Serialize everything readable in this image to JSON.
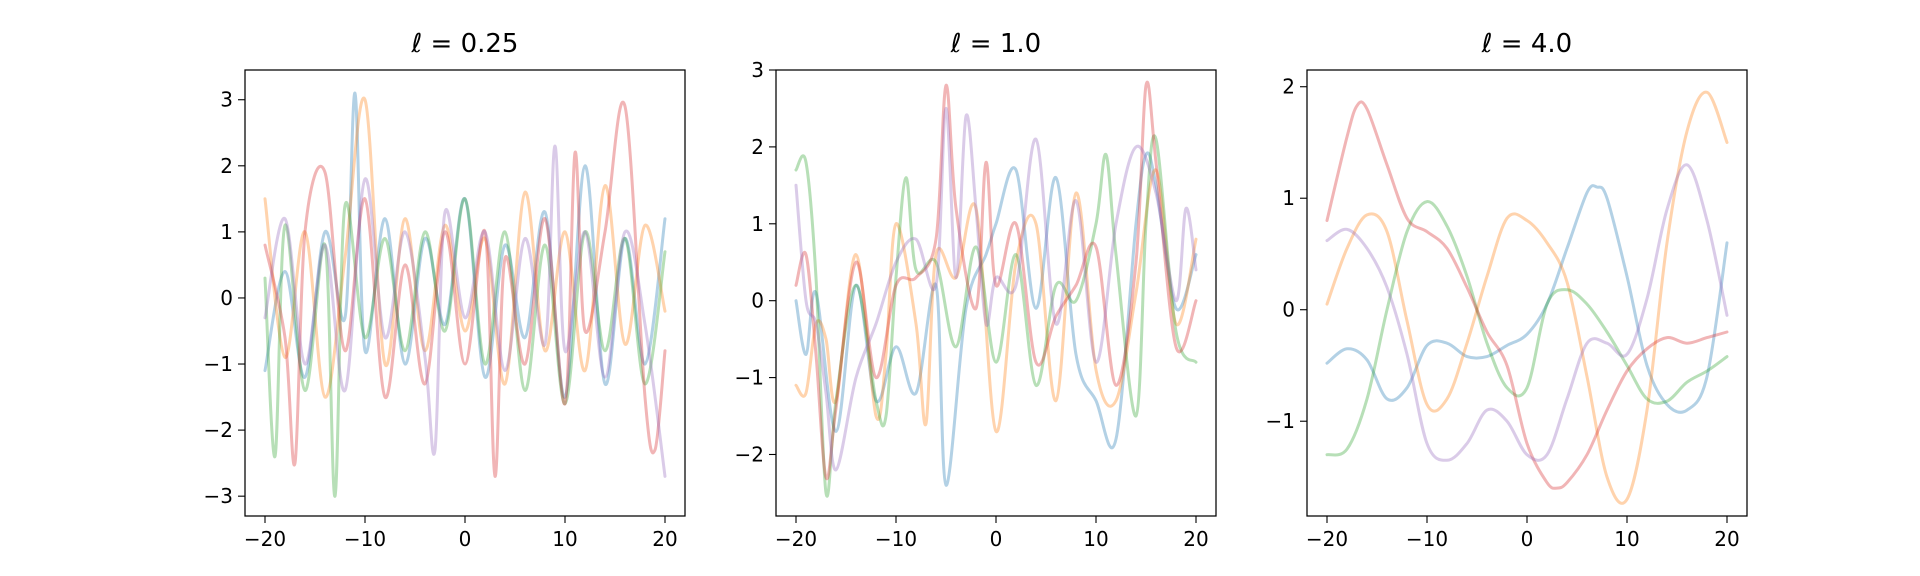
{
  "chart_data": [
    {
      "type": "line",
      "title": "ℓ = 0.25",
      "xlim": [
        -22,
        22
      ],
      "ylim": [
        -3.3,
        3.45
      ],
      "xticks": [
        -20,
        -10,
        0,
        10,
        20
      ],
      "xtick_labels": [
        "−20",
        "−10",
        "0",
        "10",
        "20"
      ],
      "yticks": [
        -3,
        -2,
        -1,
        0,
        1,
        2,
        3
      ],
      "ytick_labels": [
        "−3",
        "−2",
        "−1",
        "0",
        "1",
        "2",
        "3"
      ],
      "grid": false,
      "series": [
        {
          "color": "#1f77b4",
          "x": [
            -20,
            -18,
            -16,
            -14,
            -12,
            -11,
            -10,
            -8,
            -6,
            -4,
            -2,
            0,
            2,
            4,
            6,
            8,
            10,
            12,
            14,
            16,
            18,
            20
          ],
          "values": [
            -1.1,
            0.4,
            -1.2,
            1.0,
            -0.3,
            3.1,
            -0.8,
            1.2,
            -1.0,
            0.9,
            -0.4,
            1.5,
            -1.2,
            0.8,
            -0.6,
            1.3,
            -1.5,
            2.0,
            -1.3,
            0.9,
            -1.0,
            1.2
          ]
        },
        {
          "color": "#ff7f0e",
          "x": [
            -20,
            -18,
            -16,
            -14,
            -12,
            -10,
            -8,
            -6,
            -4,
            -2,
            0,
            2,
            4,
            6,
            8,
            10,
            12,
            14,
            16,
            18,
            20
          ],
          "values": [
            1.5,
            -0.9,
            1.0,
            -1.5,
            0.6,
            3.0,
            -1.0,
            1.2,
            -0.8,
            1.1,
            -0.5,
            0.9,
            -1.3,
            1.6,
            -0.8,
            1.0,
            -1.1,
            1.7,
            -0.7,
            1.1,
            -0.2
          ]
        },
        {
          "color": "#2ca02c",
          "x": [
            -20,
            -19,
            -18,
            -16,
            -14,
            -13,
            -12,
            -10,
            -8,
            -6,
            -4,
            -2,
            0,
            2,
            4,
            6,
            8,
            10,
            12,
            14,
            16,
            18,
            20
          ],
          "values": [
            0.3,
            -2.4,
            1.1,
            -1.4,
            0.8,
            -3.0,
            1.4,
            -0.6,
            0.9,
            -0.8,
            1.0,
            -0.5,
            1.5,
            -1.0,
            1.0,
            -1.4,
            0.8,
            -1.6,
            1.0,
            -0.8,
            0.9,
            -1.3,
            0.7
          ]
        },
        {
          "color": "#d62728",
          "x": [
            -20,
            -18,
            -17,
            -16,
            -14,
            -12,
            -10,
            -8,
            -6,
            -4,
            -2,
            0,
            2,
            3,
            4,
            6,
            8,
            10,
            11,
            12,
            14,
            16,
            18,
            19,
            20
          ],
          "values": [
            0.8,
            -0.6,
            -2.5,
            1.0,
            1.9,
            -0.8,
            1.5,
            -1.5,
            0.5,
            -1.3,
            1.0,
            -1.0,
            1.0,
            -2.7,
            0.6,
            -1.0,
            1.2,
            -1.6,
            2.2,
            -0.5,
            1.0,
            2.9,
            -1.5,
            -2.3,
            -0.8
          ]
        },
        {
          "color": "#9467bd",
          "x": [
            -20,
            -18,
            -16,
            -14,
            -12,
            -10,
            -8,
            -6,
            -4,
            -3,
            -2,
            0,
            2,
            4,
            6,
            8,
            9,
            10,
            12,
            14,
            16,
            18,
            20
          ],
          "values": [
            -0.3,
            1.2,
            -1.0,
            0.8,
            -1.4,
            1.8,
            -0.6,
            1.0,
            -0.9,
            -2.3,
            1.3,
            -0.3,
            1.0,
            -1.1,
            0.9,
            -0.7,
            2.3,
            -0.8,
            1.0,
            -1.2,
            1.0,
            -0.4,
            -2.7
          ]
        }
      ]
    },
    {
      "type": "line",
      "title": "ℓ = 1.0",
      "xlim": [
        -22,
        22
      ],
      "ylim": [
        -2.8,
        3.0
      ],
      "xticks": [
        -20,
        -10,
        0,
        10,
        20
      ],
      "xtick_labels": [
        "−20",
        "−10",
        "0",
        "10",
        "20"
      ],
      "yticks": [
        -2,
        -1,
        0,
        1,
        2,
        3
      ],
      "ytick_labels": [
        "−2",
        "−1",
        "0",
        "1",
        "2",
        "3"
      ],
      "grid": false,
      "series": [
        {
          "color": "#1f77b4",
          "x": [
            -20,
            -19,
            -18,
            -16,
            -14,
            -12,
            -10,
            -8,
            -6,
            -5,
            -3,
            -1,
            0,
            2,
            4,
            6,
            8,
            10,
            12,
            14,
            15,
            16,
            18,
            20
          ],
          "values": [
            0.0,
            -0.7,
            0.1,
            -1.7,
            0.2,
            -1.3,
            -0.6,
            -1.2,
            0.2,
            -2.4,
            -0.1,
            0.6,
            1.0,
            1.7,
            -0.1,
            1.6,
            -0.7,
            -1.3,
            -1.8,
            1.0,
            1.9,
            1.5,
            -0.1,
            0.6
          ]
        },
        {
          "color": "#ff7f0e",
          "x": [
            -20,
            -19,
            -18,
            -17,
            -16,
            -14,
            -12,
            -11,
            -10,
            -8,
            -7,
            -6,
            -4,
            -2,
            0,
            2,
            4,
            6,
            8,
            10,
            12,
            14,
            16,
            18,
            20
          ],
          "values": [
            -1.1,
            -1.2,
            -0.3,
            -0.5,
            -1.3,
            0.6,
            -1.5,
            -0.7,
            1.0,
            -0.3,
            -1.6,
            0.6,
            0.3,
            1.2,
            -1.7,
            0.5,
            1.0,
            -1.3,
            1.4,
            -0.9,
            -1.3,
            0.1,
            1.7,
            -0.3,
            0.8
          ]
        },
        {
          "color": "#2ca02c",
          "x": [
            -20,
            -19,
            -18,
            -17,
            -16,
            -14,
            -12,
            -11,
            -10,
            -9,
            -8,
            -6,
            -4,
            -2,
            0,
            2,
            4,
            6,
            8,
            10,
            11,
            12,
            14,
            15,
            16,
            18,
            20
          ],
          "values": [
            1.7,
            1.8,
            0.3,
            -2.5,
            -1.3,
            0.2,
            -1.3,
            -1.5,
            0.3,
            1.6,
            0.4,
            0.5,
            -0.6,
            0.7,
            -0.8,
            0.6,
            -1.1,
            0.2,
            0.0,
            1.0,
            1.9,
            0.6,
            -1.5,
            1.0,
            2.1,
            -0.4,
            -0.8
          ]
        },
        {
          "color": "#d62728",
          "x": [
            -20,
            -19,
            -18,
            -17,
            -16,
            -14,
            -12,
            -10,
            -8,
            -6,
            -5,
            -4,
            -2,
            -1,
            0,
            2,
            4,
            6,
            8,
            10,
            12,
            14,
            15,
            16,
            18,
            20
          ],
          "values": [
            0.2,
            0.6,
            -0.7,
            -2.3,
            -1.4,
            0.5,
            -1.0,
            0.2,
            0.3,
            0.8,
            2.8,
            1.2,
            -0.1,
            1.8,
            0.2,
            1.0,
            -0.8,
            -0.2,
            0.2,
            0.7,
            -1.1,
            0.5,
            2.8,
            1.8,
            -0.6,
            0.0
          ]
        },
        {
          "color": "#9467bd",
          "x": [
            -20,
            -19,
            -18,
            -17,
            -16,
            -14,
            -12,
            -10,
            -8,
            -6,
            -5,
            -4,
            -3,
            -2,
            -1,
            0,
            2,
            4,
            6,
            8,
            10,
            12,
            14,
            16,
            18,
            19,
            20
          ],
          "values": [
            1.5,
            0.0,
            -0.3,
            -1.2,
            -2.2,
            -1.0,
            -0.3,
            0.5,
            0.8,
            0.2,
            2.5,
            0.3,
            2.4,
            1.2,
            -0.3,
            0.3,
            0.2,
            2.1,
            -0.3,
            1.3,
            -0.8,
            1.0,
            2.0,
            1.4,
            0.0,
            1.2,
            0.4
          ]
        }
      ]
    },
    {
      "type": "line",
      "title": "ℓ = 4.0",
      "xlim": [
        -22,
        22
      ],
      "ylim": [
        -1.85,
        2.15
      ],
      "xticks": [
        -20,
        -10,
        0,
        10,
        20
      ],
      "xtick_labels": [
        "−20",
        "−10",
        "0",
        "10",
        "20"
      ],
      "yticks": [
        -1,
        0,
        1,
        2
      ],
      "ytick_labels": [
        "−1",
        "0",
        "1",
        "2"
      ],
      "grid": false,
      "series": [
        {
          "color": "#1f77b4",
          "x": [
            -20,
            -18,
            -16,
            -14,
            -12,
            -10,
            -8,
            -6,
            -4,
            -2,
            0,
            2,
            4,
            6,
            7,
            8,
            10,
            12,
            14,
            16,
            18,
            20
          ],
          "values": [
            -0.48,
            -0.35,
            -0.45,
            -0.8,
            -0.7,
            -0.32,
            -0.3,
            -0.42,
            -0.42,
            -0.32,
            -0.22,
            0.05,
            0.55,
            1.05,
            1.1,
            1.0,
            0.3,
            -0.5,
            -0.85,
            -0.9,
            -0.6,
            0.6
          ]
        },
        {
          "color": "#ff7f0e",
          "x": [
            -20,
            -18,
            -16,
            -14,
            -12,
            -10,
            -8,
            -6,
            -4,
            -2,
            0,
            2,
            4,
            6,
            8,
            10,
            12,
            14,
            16,
            18,
            20
          ],
          "values": [
            0.05,
            0.55,
            0.85,
            0.7,
            -0.1,
            -0.85,
            -0.8,
            -0.3,
            0.3,
            0.82,
            0.8,
            0.6,
            0.25,
            -0.6,
            -1.5,
            -1.7,
            -0.9,
            0.6,
            1.6,
            1.95,
            1.5
          ]
        },
        {
          "color": "#2ca02c",
          "x": [
            -20,
            -18,
            -16,
            -14,
            -12,
            -10,
            -8,
            -6,
            -4,
            -2,
            0,
            2,
            4,
            6,
            8,
            10,
            12,
            14,
            16,
            18,
            20
          ],
          "values": [
            -1.3,
            -1.25,
            -0.8,
            0.0,
            0.7,
            0.97,
            0.75,
            0.3,
            -0.3,
            -0.7,
            -0.7,
            0.05,
            0.18,
            0.05,
            -0.2,
            -0.5,
            -0.8,
            -0.82,
            -0.65,
            -0.55,
            -0.42
          ]
        },
        {
          "color": "#d62728",
          "x": [
            -20,
            -18,
            -17,
            -16,
            -14,
            -12,
            -10,
            -8,
            -6,
            -4,
            -2,
            0,
            2,
            3,
            4,
            6,
            8,
            10,
            12,
            14,
            16,
            18,
            20
          ],
          "values": [
            0.8,
            1.55,
            1.83,
            1.8,
            1.3,
            0.82,
            0.7,
            0.55,
            0.2,
            -0.2,
            -0.5,
            -1.2,
            -1.55,
            -1.6,
            -1.55,
            -1.3,
            -0.9,
            -0.55,
            -0.35,
            -0.25,
            -0.3,
            -0.25,
            -0.2
          ]
        },
        {
          "color": "#9467bd",
          "x": [
            -20,
            -18,
            -16,
            -14,
            -12,
            -10,
            -8,
            -6,
            -4,
            -2,
            0,
            2,
            4,
            6,
            8,
            10,
            12,
            14,
            16,
            18,
            20
          ],
          "values": [
            0.62,
            0.72,
            0.55,
            0.2,
            -0.4,
            -1.2,
            -1.35,
            -1.2,
            -0.9,
            -1.0,
            -1.3,
            -1.3,
            -0.8,
            -0.3,
            -0.3,
            -0.4,
            0.1,
            0.9,
            1.3,
            0.8,
            -0.05
          ]
        }
      ]
    }
  ]
}
